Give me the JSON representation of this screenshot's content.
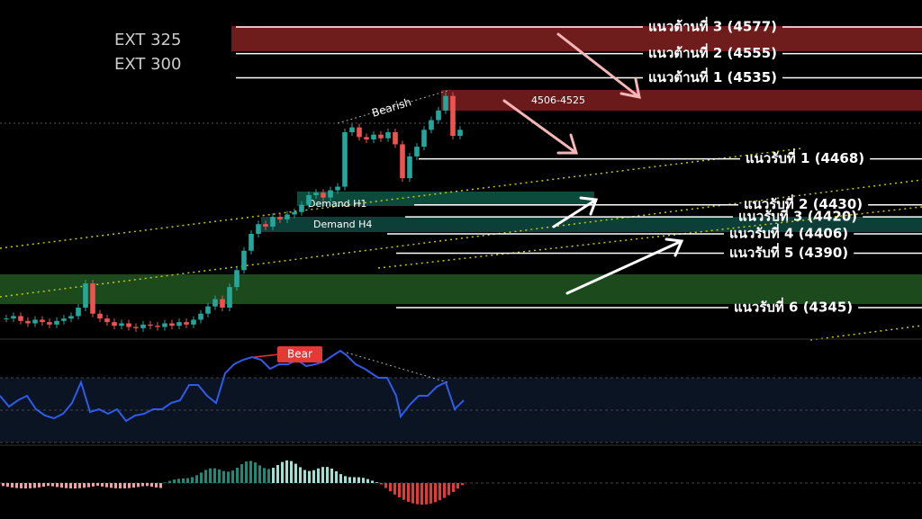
{
  "ext_labels": [
    "EXT 325",
    "EXT 300"
  ],
  "resistance": [
    {
      "label": "แนวต้านที่ 3 (4577)",
      "price": 4577
    },
    {
      "label": "แนวต้านที่ 2 (4555)",
      "price": 4555
    },
    {
      "label": "แนวต้านที่ 1 (4535)",
      "price": 4535
    }
  ],
  "support": [
    {
      "label": "แนวรับที่ 1 (4468)",
      "price": 4468
    },
    {
      "label": "แนวรับที่ 2 (4430)",
      "price": 4430
    },
    {
      "label": "แนวรับที่ 3 (4420)",
      "price": 4420
    },
    {
      "label": "แนวรับที่ 4 (4406)",
      "price": 4406
    },
    {
      "label": "แนวรับที่ 5 (4390)",
      "price": 4390
    },
    {
      "label": "แนวรับที่ 6 (4345)",
      "price": 4345
    }
  ],
  "zones": {
    "supply": "4506-4525",
    "demand_h1": "Demand H1",
    "demand_h4": "Demand H4"
  },
  "annotations": {
    "bearish": "Bearish",
    "bear": "Bear"
  },
  "closes": [
    4336,
    4338,
    4334,
    4332,
    4335,
    4333,
    4331,
    4334,
    4336,
    4338,
    4345,
    4365,
    4340,
    4336,
    4333,
    4330,
    4332,
    4329,
    4328,
    4331,
    4330,
    4329,
    4332,
    4330,
    4333,
    4331,
    4335,
    4340,
    4346,
    4352,
    4345,
    4362,
    4376,
    4392,
    4406,
    4414,
    4412,
    4420,
    4418,
    4422,
    4424,
    4430,
    4438,
    4440,
    4436,
    4442,
    4445,
    4490,
    4494,
    4486,
    4484,
    4488,
    4485,
    4490,
    4480,
    4452,
    4470,
    4478,
    4492,
    4500,
    4508,
    4520,
    4487,
    4492
  ]
}
